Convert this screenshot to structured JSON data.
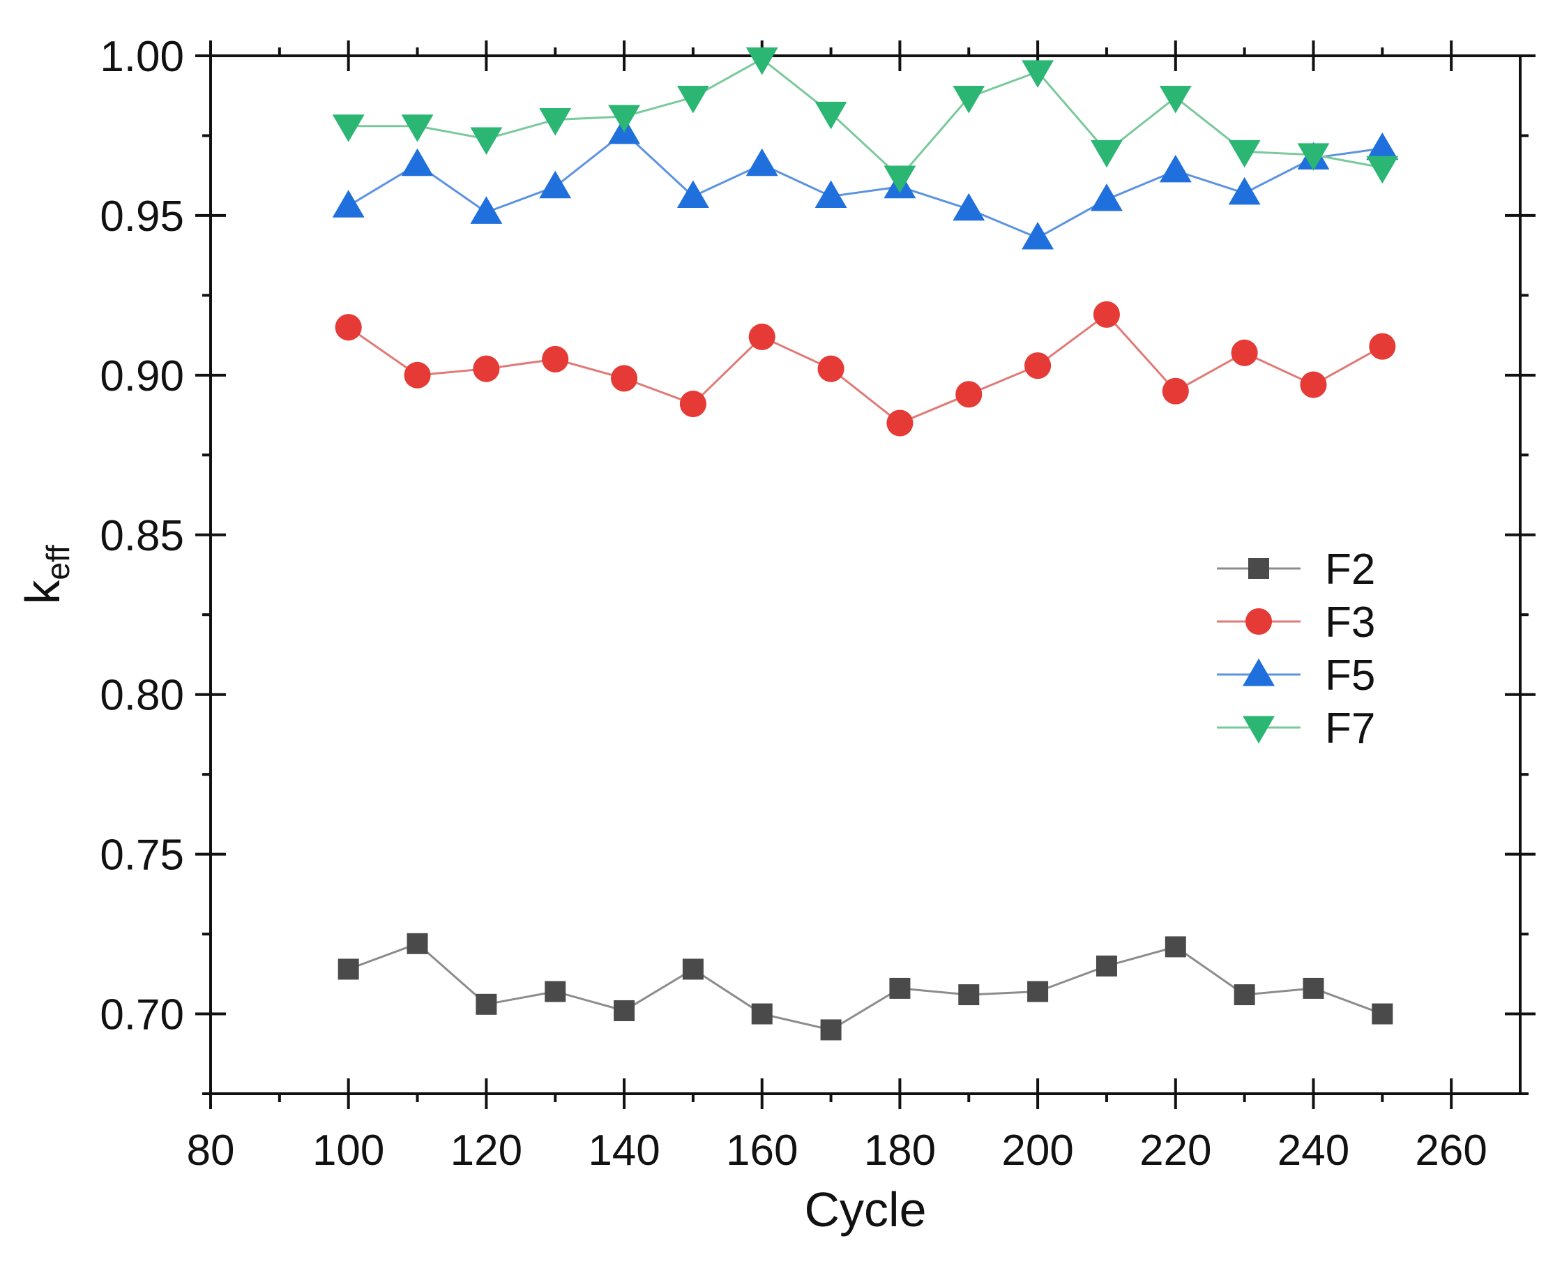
{
  "chart_data": {
    "type": "line",
    "title": "",
    "xlabel": "Cycle",
    "ylabel_main": "k",
    "ylabel_sub": "eff",
    "xlim": [
      80,
      270
    ],
    "ylim": [
      0.675,
      1.0
    ],
    "x_ticks": [
      80,
      100,
      120,
      140,
      160,
      180,
      200,
      220,
      240,
      260
    ],
    "x_tick_labels": [
      "80",
      "100",
      "120",
      "140",
      "160",
      "180",
      "200",
      "220",
      "240",
      "260"
    ],
    "y_ticks": [
      0.7,
      0.75,
      0.8,
      0.85,
      0.9,
      0.95,
      1.0
    ],
    "y_tick_labels": [
      "0.70",
      "0.75",
      "0.80",
      "0.85",
      "0.90",
      "0.95",
      "1.00"
    ],
    "grid": false,
    "legend_position": "center-right",
    "x": [
      100,
      110,
      120,
      130,
      140,
      150,
      160,
      170,
      180,
      190,
      200,
      210,
      220,
      230,
      240,
      250
    ],
    "series": [
      {
        "name": "F2",
        "marker": "square",
        "color": "#4a4a4a",
        "line_color": "#8c8c8c",
        "values": [
          0.714,
          0.722,
          0.703,
          0.707,
          0.701,
          0.714,
          0.7,
          0.695,
          0.708,
          0.706,
          0.707,
          0.715,
          0.721,
          0.706,
          0.708,
          0.7
        ]
      },
      {
        "name": "F3",
        "marker": "circle",
        "color": "#e53a35",
        "line_color": "#e07a76",
        "values": [
          0.915,
          0.9,
          0.902,
          0.905,
          0.899,
          0.891,
          0.912,
          0.902,
          0.885,
          0.894,
          0.903,
          0.919,
          0.895,
          0.907,
          0.897,
          0.909
        ]
      },
      {
        "name": "F5",
        "marker": "triangle-up",
        "color": "#1f6fdc",
        "line_color": "#5c93e0",
        "values": [
          0.953,
          0.966,
          0.951,
          0.959,
          0.976,
          0.956,
          0.966,
          0.956,
          0.959,
          0.952,
          0.943,
          0.955,
          0.964,
          0.957,
          0.968,
          0.971
        ]
      },
      {
        "name": "F7",
        "marker": "triangle-down",
        "color": "#2bb673",
        "line_color": "#79c99b",
        "values": [
          0.978,
          0.978,
          0.974,
          0.98,
          0.981,
          0.987,
          0.999,
          0.982,
          0.962,
          0.987,
          0.995,
          0.97,
          0.987,
          0.97,
          0.969,
          0.965
        ]
      }
    ]
  }
}
